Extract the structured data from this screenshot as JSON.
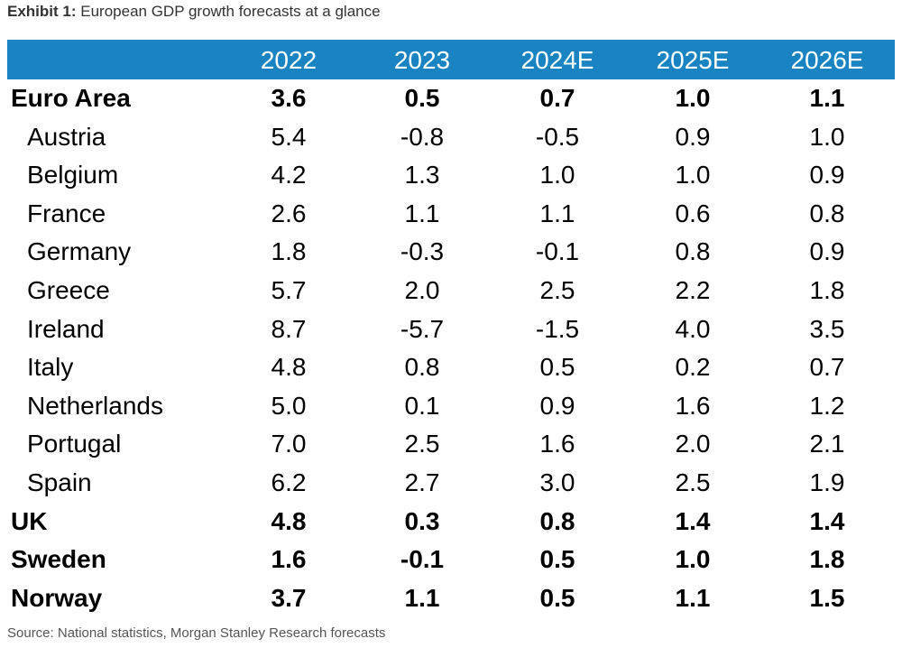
{
  "exhibit": {
    "prefix": "Exhibit 1:",
    "title": "European GDP growth forecasts at a glance"
  },
  "source": "Source: National statistics, Morgan Stanley Research forecasts",
  "colors": {
    "header_background": "#1a84c2",
    "header_text": "#ffffff"
  },
  "chart_data": {
    "type": "table",
    "title": "European GDP growth forecasts at a glance",
    "columns": [
      "2022",
      "2023",
      "2024E",
      "2025E",
      "2026E"
    ],
    "rows": [
      {
        "label": "Euro Area",
        "bold": true,
        "indent": false,
        "values": [
          "3.6",
          "0.5",
          "0.7",
          "1.0",
          "1.1"
        ]
      },
      {
        "label": "Austria",
        "bold": false,
        "indent": true,
        "values": [
          "5.4",
          "-0.8",
          "-0.5",
          "0.9",
          "1.0"
        ]
      },
      {
        "label": "Belgium",
        "bold": false,
        "indent": true,
        "values": [
          "4.2",
          "1.3",
          "1.0",
          "1.0",
          "0.9"
        ]
      },
      {
        "label": "France",
        "bold": false,
        "indent": true,
        "values": [
          "2.6",
          "1.1",
          "1.1",
          "0.6",
          "0.8"
        ]
      },
      {
        "label": "Germany",
        "bold": false,
        "indent": true,
        "values": [
          "1.8",
          "-0.3",
          "-0.1",
          "0.8",
          "0.9"
        ]
      },
      {
        "label": "Greece",
        "bold": false,
        "indent": true,
        "values": [
          "5.7",
          "2.0",
          "2.5",
          "2.2",
          "1.8"
        ]
      },
      {
        "label": "Ireland",
        "bold": false,
        "indent": true,
        "values": [
          "8.7",
          "-5.7",
          "-1.5",
          "4.0",
          "3.5"
        ]
      },
      {
        "label": "Italy",
        "bold": false,
        "indent": true,
        "values": [
          "4.8",
          "0.8",
          "0.5",
          "0.2",
          "0.7"
        ]
      },
      {
        "label": "Netherlands",
        "bold": false,
        "indent": true,
        "values": [
          "5.0",
          "0.1",
          "0.9",
          "1.6",
          "1.2"
        ]
      },
      {
        "label": "Portugal",
        "bold": false,
        "indent": true,
        "values": [
          "7.0",
          "2.5",
          "1.6",
          "2.0",
          "2.1"
        ]
      },
      {
        "label": "Spain",
        "bold": false,
        "indent": true,
        "values": [
          "6.2",
          "2.7",
          "3.0",
          "2.5",
          "1.9"
        ]
      },
      {
        "label": "UK",
        "bold": true,
        "indent": false,
        "values": [
          "4.8",
          "0.3",
          "0.8",
          "1.4",
          "1.4"
        ]
      },
      {
        "label": "Sweden",
        "bold": true,
        "indent": false,
        "values": [
          "1.6",
          "-0.1",
          "0.5",
          "1.0",
          "1.8"
        ]
      },
      {
        "label": "Norway",
        "bold": true,
        "indent": false,
        "values": [
          "3.7",
          "1.1",
          "0.5",
          "1.1",
          "1.5"
        ]
      }
    ]
  }
}
